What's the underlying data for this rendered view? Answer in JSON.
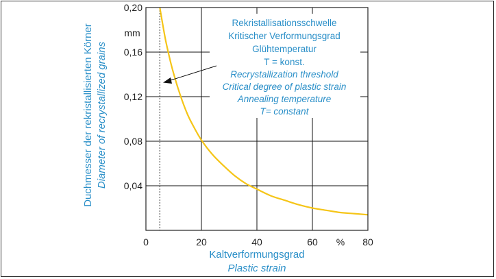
{
  "chart_data": {
    "type": "line",
    "x": [
      5,
      7,
      9,
      11,
      13,
      15,
      17,
      20,
      24,
      28,
      32,
      36,
      40,
      45,
      50,
      55,
      60,
      65,
      70,
      75,
      80
    ],
    "series": [
      {
        "values": [
          0.2,
          0.172,
          0.15,
          0.132,
          0.117,
          0.104,
          0.094,
          0.081,
          0.068,
          0.058,
          0.049,
          0.042,
          0.037,
          0.031,
          0.027,
          0.023,
          0.02,
          0.018,
          0.016,
          0.015,
          0.014
        ],
        "color": "#f5c518"
      }
    ],
    "threshold_x": 5,
    "xlim": [
      0,
      80
    ],
    "ylim": [
      0,
      0.2
    ],
    "x_ticks": [
      "0",
      "20",
      "40",
      "60",
      "80"
    ],
    "x_unit": "%",
    "y_ticks": [
      "0,04",
      "0,08",
      "0,12",
      "0,16",
      "0,20"
    ],
    "y_unit": "mm",
    "xlabel": "Kaltverformungsgrad",
    "xlabel_en": "Plastic strain",
    "ylabel": "Duchmesser der rekristallisierten Körner",
    "ylabel_en": "Diameter of recrystallized grains",
    "grid": true,
    "annotation": {
      "lines_de": [
        "Rekristallisationsschwelle",
        "Kritischer Verformungsgrad",
        "Glühtemperatur",
        "T = konst."
      ],
      "lines_en": [
        "Recrystallization threshold",
        "Critical degree of plastic strain",
        "Annealing temperature",
        "T= constant"
      ]
    },
    "colors": {
      "label": "#2a8fc8",
      "curve": "#f5c518",
      "axis": "#222222"
    }
  }
}
